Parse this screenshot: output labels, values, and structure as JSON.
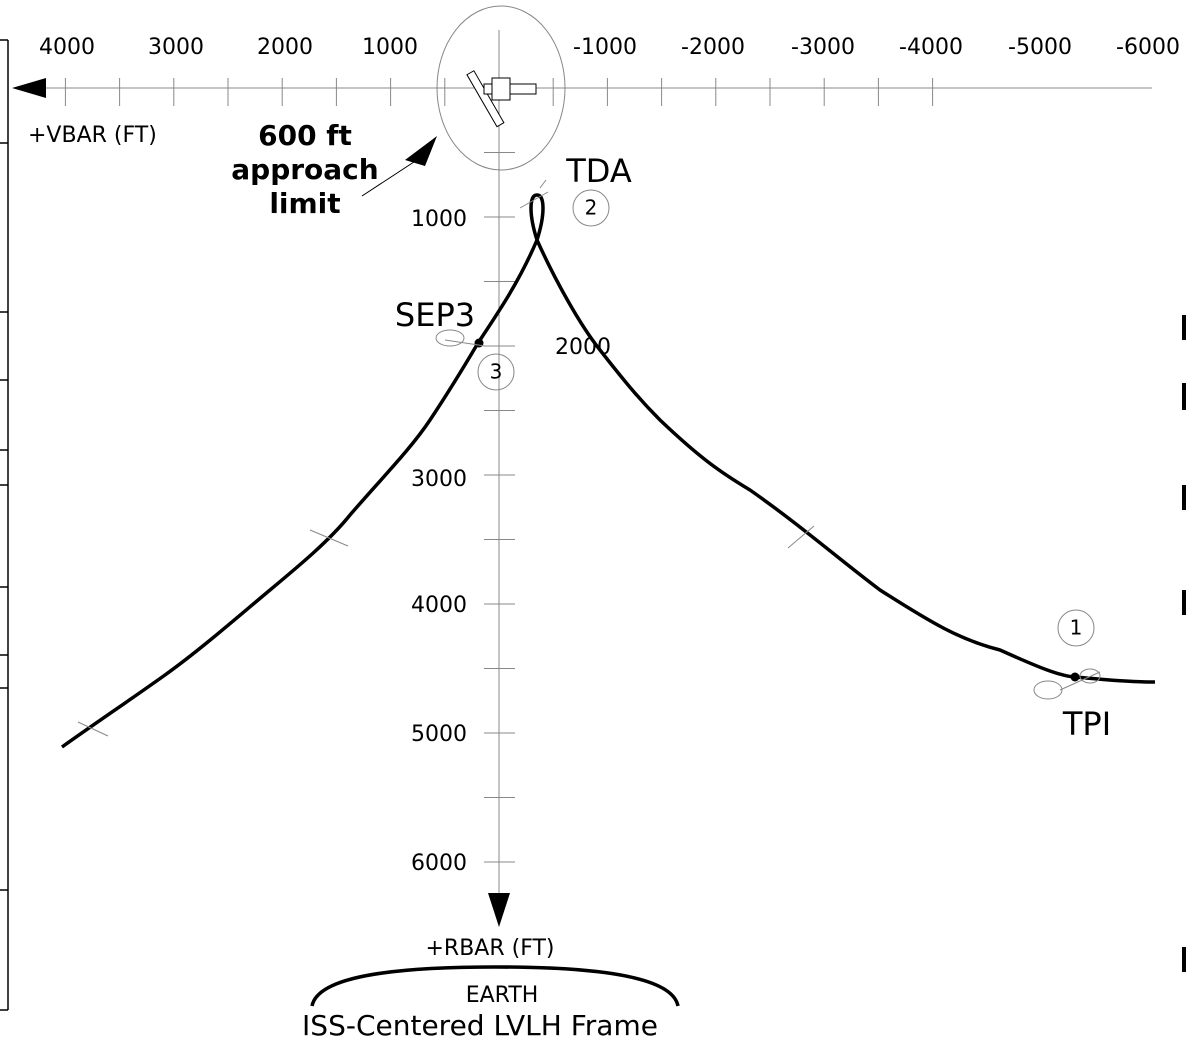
{
  "x_axis": {
    "label": "+VBAR (FT)",
    "tick_labels": [
      "4000",
      "3000",
      "2000",
      "1000",
      "-1000",
      "-2000",
      "-3000",
      "-4000",
      "-5000",
      "-6000"
    ]
  },
  "y_axis": {
    "label": "+RBAR (FT)",
    "tick_labels": [
      "1000",
      "2000",
      "3000",
      "4000",
      "5000",
      "6000"
    ]
  },
  "approach_limit": {
    "lines": [
      "600 ft",
      "approach",
      "limit"
    ]
  },
  "points": [
    {
      "label": "TPI",
      "number": "1"
    },
    {
      "label": "TDA",
      "number": "2"
    },
    {
      "label": "SEP3",
      "number": "3"
    }
  ],
  "earth": "EARTH",
  "caption": "ISS-Centered LVLH Frame"
}
